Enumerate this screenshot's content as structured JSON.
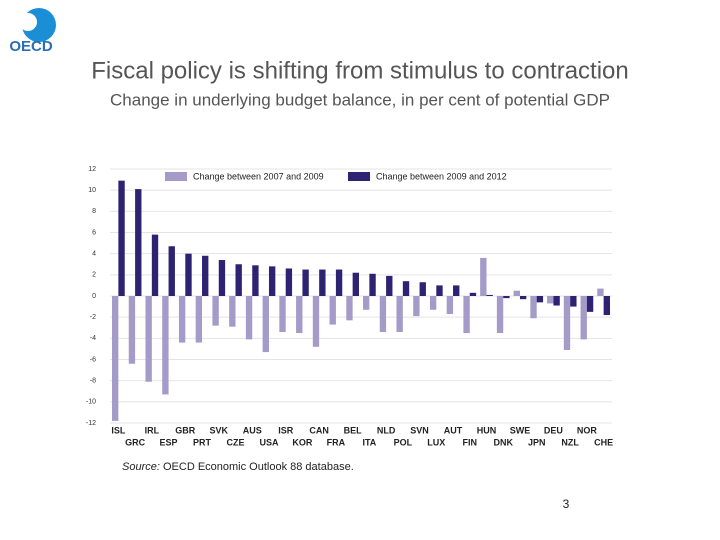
{
  "logo": "OECD",
  "chart_data": {
    "type": "bar",
    "title": "Fiscal policy is shifting from stimulus to contraction",
    "subtitle": "Change in underlying budget balance, in per cent of potential GDP",
    "categories": [
      "ISL",
      "GRC",
      "IRL",
      "ESP",
      "GBR",
      "PRT",
      "SVK",
      "CZE",
      "AUS",
      "USA",
      "ISR",
      "KOR",
      "CAN",
      "FRA",
      "BEL",
      "ITA",
      "NLD",
      "POL",
      "SVN",
      "LUX",
      "AUT",
      "FIN",
      "HUN",
      "DNK",
      "SWE",
      "JPN",
      "DEU",
      "NZL",
      "NOR",
      "CHE"
    ],
    "series": [
      {
        "name": "Change between 2007 and 2009",
        "color": "#a49bc9",
        "values": [
          -11.8,
          -6.4,
          -8.1,
          -9.3,
          -4.4,
          -4.4,
          -2.8,
          -2.9,
          -4.1,
          -5.3,
          -3.4,
          -3.5,
          -4.8,
          -2.7,
          -2.3,
          -1.3,
          -3.4,
          -3.4,
          -1.9,
          -1.3,
          -1.7,
          -3.5,
          3.6,
          -3.5,
          0.5,
          -2.1,
          -0.7,
          -5.1,
          -4.1,
          0.7
        ]
      },
      {
        "name": "Change between 2009 and 2012",
        "color": "#2e2272",
        "values": [
          10.9,
          10.1,
          5.8,
          4.7,
          4.0,
          3.8,
          3.4,
          3.0,
          2.9,
          2.8,
          2.6,
          2.5,
          2.5,
          2.5,
          2.2,
          2.1,
          1.9,
          1.4,
          1.3,
          1.0,
          1.0,
          0.3,
          0.1,
          -0.2,
          -0.3,
          -0.6,
          -0.9,
          -1.0,
          -1.5,
          -1.8
        ]
      }
    ],
    "ylim": [
      -12,
      12
    ],
    "yticks": [
      -12,
      -10,
      -8,
      -6,
      -4,
      -2,
      0,
      2,
      4,
      6,
      8,
      10,
      12
    ],
    "grid": true,
    "source_label": "Source:",
    "source_text": "OECD Economic Outlook 88 database.",
    "page_number": "3"
  }
}
